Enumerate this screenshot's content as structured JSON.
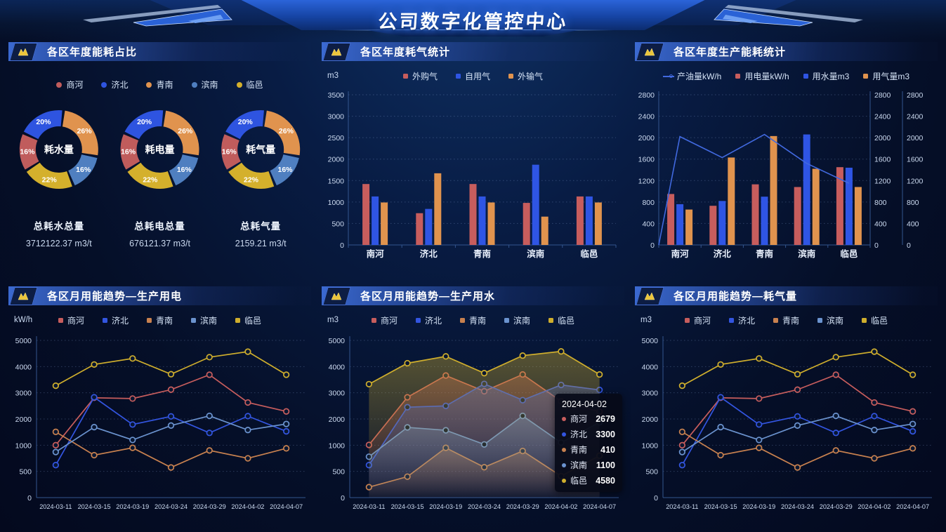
{
  "app_title": "公司数字化管控中心",
  "panels": [
    {
      "title": "各区年度能耗占比",
      "unit": ""
    },
    {
      "title": "各区年度耗气统计",
      "unit": "m3"
    },
    {
      "title": "各区年度生产能耗统计",
      "unit": ""
    },
    {
      "title": "各区月用能趋势—生产用电",
      "unit": "kW/h"
    },
    {
      "title": "各区月用能趋势—生产用水",
      "unit": "m3"
    },
    {
      "title": "各区月用能趋势—耗气量",
      "unit": "m3"
    }
  ],
  "chart_data": [
    {
      "type": "pie",
      "title": "各区年度能耗占比",
      "legend": [
        "商河",
        "济北",
        "青南",
        "滨南",
        "临邑"
      ],
      "slices": [
        {
          "name": "商河",
          "pct": 16,
          "color": "#c05c5c"
        },
        {
          "name": "济北",
          "pct": 20,
          "color": "#2e54e0"
        },
        {
          "name": "青南",
          "pct": 26,
          "color": "#e0934e"
        },
        {
          "name": "滨南",
          "pct": 16,
          "color": "#4f7fc0"
        },
        {
          "name": "临邑",
          "pct": 22,
          "color": "#d4b02c"
        }
      ],
      "draw_order": [
        "青南",
        "滨南",
        "临邑",
        "商河",
        "济北"
      ],
      "donuts": [
        {
          "center_label": "耗水量"
        },
        {
          "center_label": "耗电量"
        },
        {
          "center_label": "耗气量"
        }
      ],
      "totals": [
        {
          "label": "总耗水总量",
          "value": "3712122.37 m3/t"
        },
        {
          "label": "总耗电总量",
          "value": "676121.37 m3/t"
        },
        {
          "label": "总耗气量",
          "value": "2159.21 m3/t"
        }
      ]
    },
    {
      "type": "bar",
      "title": "各区年度耗气统计",
      "ylabel": "m3",
      "ylim": [
        0,
        3500
      ],
      "ystep": 500,
      "categories": [
        "南河",
        "济北",
        "青南",
        "滨南",
        "临邑"
      ],
      "series": [
        {
          "name": "外购气",
          "color": "#c75d5d",
          "values": [
            1420,
            740,
            1420,
            980,
            1130
          ]
        },
        {
          "name": "自用气",
          "color": "#2f55e4",
          "values": [
            1130,
            840,
            1130,
            1870,
            1130
          ]
        },
        {
          "name": "外输气",
          "color": "#e0934e",
          "values": [
            990,
            1670,
            990,
            660,
            990
          ]
        }
      ]
    },
    {
      "type": "bar",
      "title": "各区年度生产能耗统计",
      "ylim": [
        0,
        2800
      ],
      "ystep": 400,
      "right_axes": 2,
      "categories": [
        "南河",
        "济北",
        "青南",
        "滨南",
        "临邑"
      ],
      "line_series": {
        "name": "产油量kW/h",
        "color": "#4169df",
        "starts_at_zero": true,
        "values": [
          2020,
          1630,
          2060,
          1520,
          1150
        ]
      },
      "series": [
        {
          "name": "用电量kW/h",
          "color": "#c75d5d",
          "values": [
            950,
            730,
            1130,
            1080,
            1450
          ]
        },
        {
          "name": "用水量m3",
          "color": "#2f55e4",
          "values": [
            760,
            820,
            900,
            2060,
            1440
          ]
        },
        {
          "name": "用气量m3",
          "color": "#e0934e",
          "values": [
            660,
            1630,
            2030,
            1420,
            1080
          ]
        }
      ]
    },
    {
      "type": "line",
      "title": "各区月用能趋势—生产用电",
      "ylabel": "kW/h",
      "yticks": [
        0,
        500,
        1000,
        2000,
        3000,
        4000,
        5000
      ],
      "x": [
        "2024-03-11",
        "2024-03-15",
        "2024-03-19",
        "2024-03-24",
        "2024-03-29",
        "2024-04-02",
        "2024-04-07"
      ],
      "series": [
        {
          "name": "商河",
          "color": "#c75d5d",
          "values": [
            1000,
            2810,
            2780,
            3120,
            3690,
            2630,
            2290
          ]
        },
        {
          "name": "济北",
          "color": "#3355e0",
          "values": [
            620,
            2830,
            1790,
            2100,
            1470,
            2110,
            1530
          ]
        },
        {
          "name": "青南",
          "color": "#c8814f",
          "values": [
            1510,
            810,
            950,
            575,
            900,
            750,
            940
          ]
        },
        {
          "name": "滨南",
          "color": "#6b93cf",
          "values": [
            870,
            1690,
            1200,
            1750,
            2120,
            1580,
            1810
          ]
        },
        {
          "name": "临邑",
          "color": "#cfae2d",
          "values": [
            3270,
            4080,
            4310,
            3710,
            4360,
            4570,
            3690
          ]
        }
      ]
    },
    {
      "type": "line",
      "title": "各区月用能趋势—生产用水",
      "ylabel": "m3",
      "area": true,
      "yticks": [
        0,
        500,
        1000,
        2000,
        3000,
        4000,
        5000
      ],
      "x": [
        "2024-03-11",
        "2024-03-15",
        "2024-03-19",
        "2024-03-24",
        "2024-03-29",
        "2024-04-02",
        "2024-04-07"
      ],
      "series": [
        {
          "name": "商河",
          "color": "#c75d5d",
          "values": [
            1010,
            2830,
            3660,
            3060,
            3700,
            2679,
            2280
          ]
        },
        {
          "name": "济北",
          "color": "#3355e0",
          "values": [
            620,
            2450,
            2500,
            3340,
            2720,
            3300,
            3110
          ]
        },
        {
          "name": "青南",
          "color": "#c8814f",
          "values": [
            200,
            400,
            950,
            580,
            890,
            410,
            800
          ]
        },
        {
          "name": "滨南",
          "color": "#6b93cf",
          "values": [
            780,
            1680,
            1570,
            1030,
            2120,
            1100,
            1870
          ]
        },
        {
          "name": "临邑",
          "color": "#cfae2d",
          "values": [
            3330,
            4130,
            4390,
            3750,
            4420,
            4580,
            3700
          ]
        }
      ],
      "tooltip": {
        "title": "2024-04-02",
        "rows": [
          {
            "name": "商河",
            "value": "2679"
          },
          {
            "name": "济北",
            "value": "3300"
          },
          {
            "name": "青南",
            "value": "410"
          },
          {
            "name": "滨南",
            "value": "1100"
          },
          {
            "name": "临邑",
            "value": "4580"
          }
        ]
      }
    },
    {
      "type": "line",
      "title": "各区月用能趋势—耗气量",
      "ylabel": "m3",
      "yticks": [
        0,
        500,
        1000,
        2000,
        3000,
        4000,
        5000
      ],
      "x": [
        "2024-03-11",
        "2024-03-15",
        "2024-03-19",
        "2024-03-24",
        "2024-03-29",
        "2024-04-02",
        "2024-04-07"
      ],
      "series": [
        {
          "name": "商河",
          "color": "#c75d5d",
          "values": [
            1000,
            2810,
            2780,
            3120,
            3690,
            2630,
            2290
          ]
        },
        {
          "name": "济北",
          "color": "#3355e0",
          "values": [
            620,
            2830,
            1790,
            2100,
            1470,
            2110,
            1530
          ]
        },
        {
          "name": "青南",
          "color": "#c8814f",
          "values": [
            1510,
            810,
            950,
            575,
            900,
            750,
            940
          ]
        },
        {
          "name": "滨南",
          "color": "#6b93cf",
          "values": [
            870,
            1690,
            1200,
            1750,
            2120,
            1580,
            1810
          ]
        },
        {
          "name": "临邑",
          "color": "#cfae2d",
          "values": [
            3270,
            4080,
            4310,
            3710,
            4360,
            4570,
            3690
          ]
        }
      ]
    }
  ]
}
